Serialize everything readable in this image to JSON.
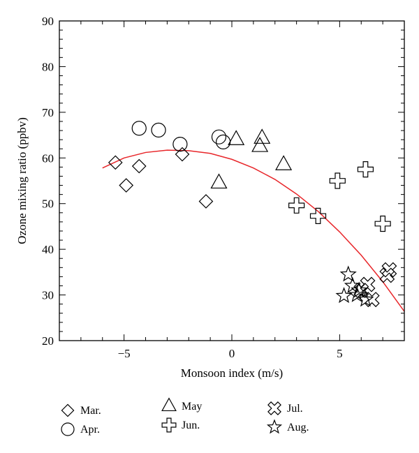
{
  "chart_data": {
    "type": "scatter",
    "xlabel": "Monsoon index (m/s)",
    "ylabel": "Ozone mixing ratio (ppbv)",
    "xlim": [
      -8,
      8
    ],
    "ylim": [
      20,
      90
    ],
    "xticks": [
      -5,
      0,
      5
    ],
    "yticks": [
      20,
      30,
      40,
      50,
      60,
      70,
      80,
      90
    ],
    "grid": false,
    "legend_position": "bottom",
    "fit_curve": {
      "color": "#e8262a",
      "x": [
        -6.0,
        -5.0,
        -4.0,
        -3.0,
        -2.0,
        -1.0,
        0.0,
        1.0,
        2.0,
        3.0,
        4.0,
        5.0,
        6.0,
        7.0,
        8.0
      ],
      "y": [
        57.8,
        60.0,
        61.2,
        61.7,
        61.6,
        61.0,
        59.7,
        57.8,
        55.3,
        52.1,
        48.3,
        43.8,
        38.7,
        32.9,
        26.4
      ]
    },
    "series": [
      {
        "name": "Mar.",
        "marker": "diamond",
        "x": [
          -5.4,
          -4.9,
          -4.3,
          -2.3,
          -1.2
        ],
        "y": [
          59.0,
          54.0,
          58.2,
          60.8,
          50.5
        ]
      },
      {
        "name": "Apr.",
        "marker": "circle",
        "x": [
          -4.3,
          -3.4,
          -2.4,
          -0.6,
          -0.4
        ],
        "y": [
          66.5,
          66.1,
          63.0,
          64.6,
          63.5
        ]
      },
      {
        "name": "May",
        "marker": "triangle",
        "x": [
          0.2,
          1.4,
          1.3,
          2.4,
          -0.6
        ],
        "y": [
          64.0,
          64.3,
          62.5,
          58.5,
          54.5
        ]
      },
      {
        "name": "Jun.",
        "marker": "plus",
        "x": [
          6.2,
          4.9,
          3.0,
          4.0,
          7.0
        ],
        "y": [
          57.5,
          55.0,
          49.6,
          47.3,
          45.6
        ]
      },
      {
        "name": "Jul.",
        "marker": "x",
        "x": [
          7.3,
          7.2,
          6.3,
          6.5,
          6.0
        ],
        "y": [
          35.5,
          34.3,
          32.3,
          29.0,
          31.0
        ]
      },
      {
        "name": "Aug.",
        "marker": "star",
        "x": [
          5.4,
          5.6,
          5.9,
          5.2,
          5.8,
          6.2
        ],
        "y": [
          34.5,
          32.0,
          31.0,
          29.8,
          30.0,
          29.0
        ]
      }
    ]
  }
}
